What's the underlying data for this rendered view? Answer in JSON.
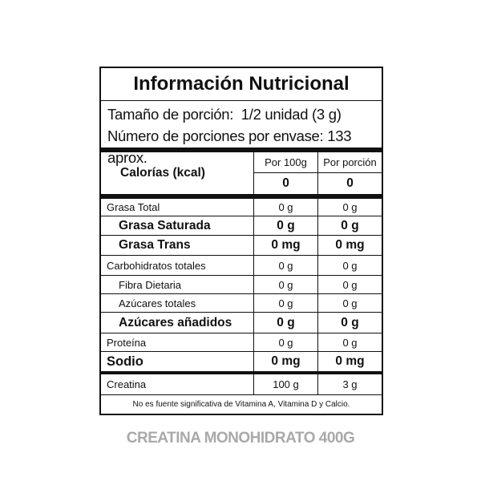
{
  "label": {
    "title": "Información Nutricional",
    "serving_size": "Tamaño de porción:  1/2 unidad (3 g)",
    "servings_per_container": "Número de porciones por envase: 133 aprox.",
    "calories_label": "Calorías (kcal)",
    "col_per100": "Por 100g",
    "col_perserving": "Por porción",
    "calories_per100": "0",
    "calories_perserving": "0",
    "rows": [
      {
        "name": "Grasa Total",
        "per100": "0 g",
        "perserving": "0 g",
        "style": "normal"
      },
      {
        "name": "Grasa Saturada",
        "per100": "0 g",
        "perserving": "0 g",
        "style": "bold-indent"
      },
      {
        "name": "Grasa Trans",
        "per100": "0 mg",
        "perserving": "0 mg",
        "style": "bold-indent"
      },
      {
        "name": "Carbohidratos totales",
        "per100": "0 g",
        "perserving": "0 g",
        "style": "normal"
      },
      {
        "name": "Fibra Dietaria",
        "per100": "0 g",
        "perserving": "0 g",
        "style": "indent"
      },
      {
        "name": "Azúcares totales",
        "per100": "0 g",
        "perserving": "0 g",
        "style": "indent"
      },
      {
        "name": "Azúcares añadidos",
        "per100": "0 g",
        "perserving": "0 g",
        "style": "bold-indent"
      },
      {
        "name": "Proteína",
        "per100": "0 g",
        "perserving": "0 g",
        "style": "normal"
      },
      {
        "name": "Sodio",
        "per100": "0 mg",
        "perserving": "0 mg",
        "style": "bold"
      },
      {
        "name": "Creatina",
        "per100": "100 g",
        "perserving": "3 g",
        "style": "normal"
      }
    ],
    "footnote": "No es fuente significativa de Vitamina A, Vitamina D y Calcio."
  },
  "product_name": "CREATINA MONOHIDRATO 400G"
}
